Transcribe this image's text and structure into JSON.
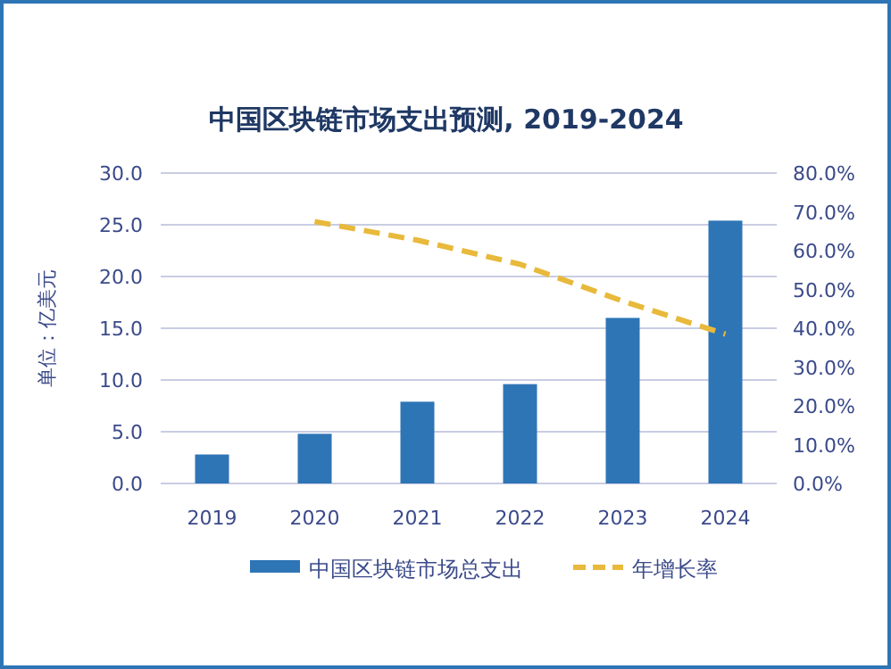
{
  "chart_data": {
    "type": "bar",
    "title": "中国区块链市场支出预测, 2019-2024",
    "ylabel": "单位：亿美元",
    "categories": [
      "2019",
      "2020",
      "2021",
      "2022",
      "2023",
      "2024"
    ],
    "series": [
      {
        "name": "中国区块链市场总支出",
        "color": "#2e75b6",
        "values": [
          2.8,
          4.8,
          7.9,
          9.6,
          16.0,
          25.4
        ]
      },
      {
        "name": "年增长率",
        "type": "line",
        "axis": "y2",
        "color": "#e8b93a",
        "line_style": "dashed",
        "marker": "none",
        "values": [
          null,
          67.5,
          62.7,
          56.5,
          47.0,
          38.5
        ]
      }
    ],
    "ylim": [
      0,
      30
    ],
    "yticks": [
      {
        "value": 0,
        "label": "0.0"
      },
      {
        "value": 5,
        "label": "5.0"
      },
      {
        "value": 10,
        "label": "10.0"
      },
      {
        "value": 15,
        "label": "15.0"
      },
      {
        "value": 20,
        "label": "20.0"
      },
      {
        "value": 25,
        "label": "25.0"
      },
      {
        "value": 30,
        "label": "30.0"
      }
    ],
    "y2lim": [
      0,
      80
    ],
    "y2ticks": [
      {
        "value": 0,
        "label": "0.0%"
      },
      {
        "value": 10,
        "label": "10.0%"
      },
      {
        "value": 20,
        "label": "20.0%"
      },
      {
        "value": 30,
        "label": "30.0%"
      },
      {
        "value": 40,
        "label": "40.0%"
      },
      {
        "value": 50,
        "label": "50.0%"
      },
      {
        "value": 60,
        "label": "60.0%"
      },
      {
        "value": 70,
        "label": "70.0%"
      },
      {
        "value": 80,
        "label": "80.0%"
      }
    ],
    "grid": "y",
    "legend": "bottom"
  }
}
